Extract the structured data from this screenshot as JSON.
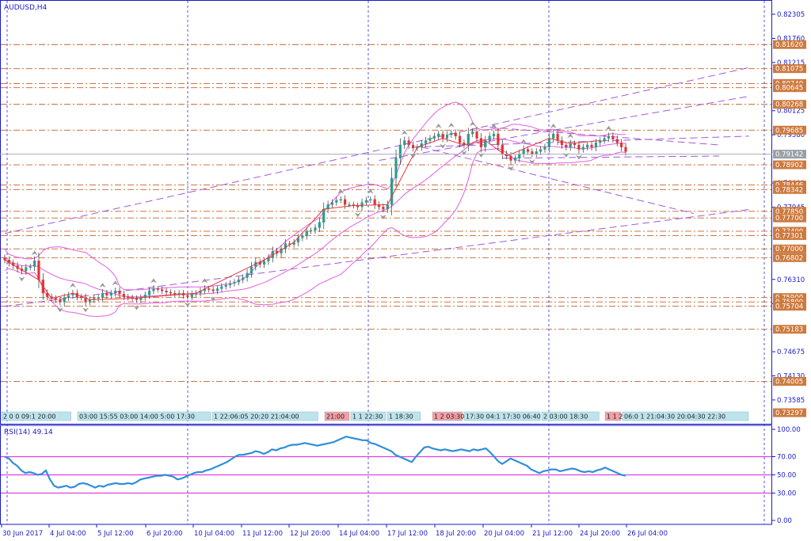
{
  "chart_data": {
    "type": "candlestick",
    "symbol_label": "AUDUSD,H4",
    "price_ticks": [
      "0.82305",
      "0.81760",
      "0.81215",
      "0.80125",
      "0.79580",
      "0.78490",
      "0.77945",
      "0.76310",
      "0.75765",
      "0.74675",
      "0.74130",
      "0.73585"
    ],
    "price_ylim": [
      0.73297,
      0.82305
    ],
    "current_price": "0.79142",
    "level_labels": [
      "0.81620",
      "0.81075",
      "0.80740",
      "0.80645",
      "0.80268",
      "0.79685",
      "0.79142",
      "0.78902",
      "0.78446",
      "0.78342",
      "0.77850",
      "0.77700",
      "0.77400",
      "0.77301",
      "0.77000",
      "0.76802",
      "0.75900",
      "0.75800",
      "0.75704",
      "0.75183",
      "0.74005",
      "0.73297"
    ],
    "level_prices": [
      0.8162,
      0.81075,
      0.8074,
      0.80645,
      0.80268,
      0.79685,
      0.78902,
      0.78446,
      0.78342,
      0.7785,
      0.777,
      0.774,
      0.77301,
      0.77,
      0.76802,
      0.759,
      0.758,
      0.75704,
      0.75183,
      0.74005
    ],
    "close_series": [
      0.7675,
      0.7668,
      0.7662,
      0.7655,
      0.765,
      0.7658,
      0.766,
      0.7673,
      0.763,
      0.76,
      0.7592,
      0.7588,
      0.7585,
      0.758,
      0.759,
      0.7595,
      0.76,
      0.7592,
      0.759,
      0.758,
      0.7585,
      0.7588,
      0.759,
      0.76,
      0.7595,
      0.76,
      0.7605,
      0.7598,
      0.7592,
      0.759,
      0.7588,
      0.7585,
      0.759,
      0.7596,
      0.7605,
      0.761,
      0.7608,
      0.7605,
      0.7602,
      0.76,
      0.7598,
      0.76,
      0.7595,
      0.7592,
      0.7598,
      0.76,
      0.7605,
      0.761,
      0.7608,
      0.7605,
      0.761,
      0.7615,
      0.7618,
      0.7622,
      0.7625,
      0.763,
      0.7635,
      0.7645,
      0.766,
      0.767,
      0.7665,
      0.7672,
      0.768,
      0.7695,
      0.769,
      0.77,
      0.7712,
      0.771,
      0.7715,
      0.7725,
      0.773,
      0.774,
      0.7742,
      0.7748,
      0.776,
      0.779,
      0.78,
      0.7805,
      0.781,
      0.7812,
      0.78,
      0.78,
      0.7798,
      0.7795,
      0.7805,
      0.781,
      0.7812,
      0.78,
      0.7795,
      0.779,
      0.78,
      0.786,
      0.7905,
      0.7935,
      0.7945,
      0.7935,
      0.7928,
      0.793,
      0.7938,
      0.7945,
      0.795,
      0.7955,
      0.796,
      0.795,
      0.7958,
      0.7962,
      0.7955,
      0.794,
      0.7935,
      0.796,
      0.7965,
      0.795,
      0.793,
      0.7945,
      0.7955,
      0.796,
      0.7935,
      0.7915,
      0.791,
      0.79,
      0.7905,
      0.7915,
      0.7925,
      0.792,
      0.7915,
      0.792,
      0.7925,
      0.793,
      0.795,
      0.796,
      0.7945,
      0.7935,
      0.793,
      0.7938,
      0.7935,
      0.7925,
      0.793,
      0.7935,
      0.793,
      0.794,
      0.7945,
      0.795,
      0.7955,
      0.7948,
      0.794,
      0.793,
      0.792
    ],
    "time_labels": [
      "30 Jun 2017",
      "4 Jul 04:00",
      "5 Jul 12:00",
      "6 Jul 20:00",
      "10 Jul 04:00",
      "11 Jul 12:00",
      "12 Jul 20:00",
      "14 Jul 04:00",
      "17 Jul 12:00",
      "18 Jul 20:00",
      "20 Jul 04:00",
      "21 Jul 12:00",
      "24 Jul 20:00",
      "26 Jul 04:00"
    ],
    "rsi": {
      "label": "RSI(14) 49.14",
      "ticks": [
        "100.00",
        "70.00",
        "50.00",
        "30.00",
        "0.00"
      ],
      "ylim": [
        0,
        100
      ],
      "levels": [
        70,
        50,
        30
      ],
      "values": [
        70,
        68,
        63,
        60,
        55,
        52,
        53,
        52,
        50,
        51,
        55,
        45,
        38,
        36,
        37,
        38,
        36,
        37,
        40,
        41,
        40,
        38,
        36,
        38,
        37,
        39,
        40,
        41,
        40,
        40,
        41,
        40,
        42,
        45,
        46,
        47,
        48,
        49,
        49,
        50,
        49,
        48,
        45,
        46,
        48,
        50,
        52,
        53,
        53,
        55,
        56,
        58,
        60,
        62,
        64,
        67,
        70,
        72,
        72,
        73,
        74,
        76,
        75,
        73,
        75,
        78,
        77,
        79,
        80,
        82,
        83,
        83,
        84,
        85,
        84,
        83,
        82,
        83,
        84,
        85,
        86,
        88,
        90,
        92,
        91,
        90,
        89,
        88,
        88,
        85,
        84,
        82,
        80,
        78,
        76,
        72,
        70,
        68,
        66,
        64,
        70,
        75,
        80,
        81,
        79,
        78,
        77,
        78,
        77,
        76,
        77,
        78,
        77,
        76,
        78,
        77,
        78,
        79,
        75,
        70,
        65,
        62,
        65,
        68,
        66,
        64,
        62,
        60,
        56,
        54,
        52,
        54,
        55,
        56,
        56,
        54,
        55,
        56,
        57,
        56,
        54,
        53,
        54,
        53,
        55,
        56,
        58,
        56,
        54,
        52,
        50,
        49
      ]
    },
    "legend": "none",
    "grid": "vertical dashed at date labels",
    "colors": {
      "frame": "#1a1acb",
      "grid_vertical": "#2a2ae0",
      "levels": "#c0622c",
      "level_tag_bg": "#cd7a3e",
      "bull": "#2a9d8f",
      "bear": "#e63232",
      "bollinger": "#e35fe0",
      "trend_lines": "#a15ad6",
      "zigzag": "#e33b3b",
      "current_line": "#a9acb3",
      "current_tag_bg": "#9aa0a6",
      "rsi_line": "#2f8fd8",
      "rsi_levels": "#e040e0",
      "time_tag_default": "#bde4ec",
      "time_tag_red": "#f29fa6"
    },
    "time_tags": [
      {
        "t": "2 0 0 09:1 20:00",
        "c": "default"
      },
      {
        "t": "03:00 15:55 03:00 14:00 5:00 17:30",
        "c": "mixed"
      },
      {
        "t": "1 22:06:05 20:20 21:04:00",
        "c": "default"
      },
      {
        "t": "21:00",
        "c": "red"
      },
      {
        "t": "1 1 22:30",
        "c": "default"
      },
      {
        "t": "1 18:30",
        "c": "default"
      },
      {
        "t": "1 2 03:30",
        "c": "red"
      },
      {
        "t": "17:30 04:1 17:30 06:40",
        "c": "mixed"
      },
      {
        "t": "2 03:00 18:30",
        "c": "default"
      },
      {
        "t": "1 1 23:",
        "c": "red"
      },
      {
        "t": "06:0 1 21:04:30 20:04:30 22:30",
        "c": "default"
      }
    ]
  }
}
